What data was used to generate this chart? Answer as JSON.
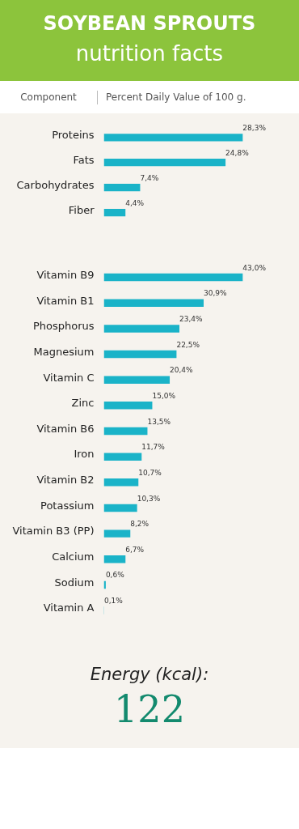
{
  "chart_data": [
    {
      "type": "bar",
      "orientation": "horizontal",
      "title": "SOYBEAN SPROUTS",
      "subtitle": "nutrition facts",
      "ylabel": "Component",
      "xlabel": "Percent Daily Value of 100 g.",
      "categories": [
        "Proteins",
        "Fats",
        "Carbohydrates",
        "Fiber"
      ],
      "values": [
        28.3,
        24.8,
        7.4,
        4.4
      ],
      "color": "#1ab3c8",
      "value_labels": [
        "28,3%",
        "24,8%",
        "7,4%",
        "4,4%"
      ],
      "grid": false,
      "tick_labels": "y"
    },
    {
      "type": "bar",
      "orientation": "horizontal",
      "categories": [
        "Vitamin B9",
        "Vitamin B1",
        "Phosphorus",
        "Magnesium",
        "Vitamin C",
        "Zinc",
        "Vitamin B6",
        "Iron",
        "Vitamin B2",
        "Potassium",
        "Vitamin B3 (PP)",
        "Calcium",
        "Sodium",
        "Vitamin A"
      ],
      "values": [
        43.0,
        30.9,
        23.4,
        22.5,
        20.4,
        15.0,
        13.5,
        11.7,
        10.7,
        10.3,
        8.2,
        6.7,
        0.6,
        0.1
      ],
      "color": "#1ab3c8",
      "value_labels": [
        "43,0%",
        "30,9%",
        "23,4%",
        "22,5%",
        "20,4%",
        "15,0%",
        "13,5%",
        "11,7%",
        "10,7%",
        "10,3%",
        "8,2%",
        "6,7%",
        "0,6%",
        "0,1%"
      ],
      "grid": false,
      "tick_labels": "y"
    },
    {
      "type": "other",
      "title": "Energy (kcal):",
      "annotations": [
        "122"
      ]
    }
  ]
}
